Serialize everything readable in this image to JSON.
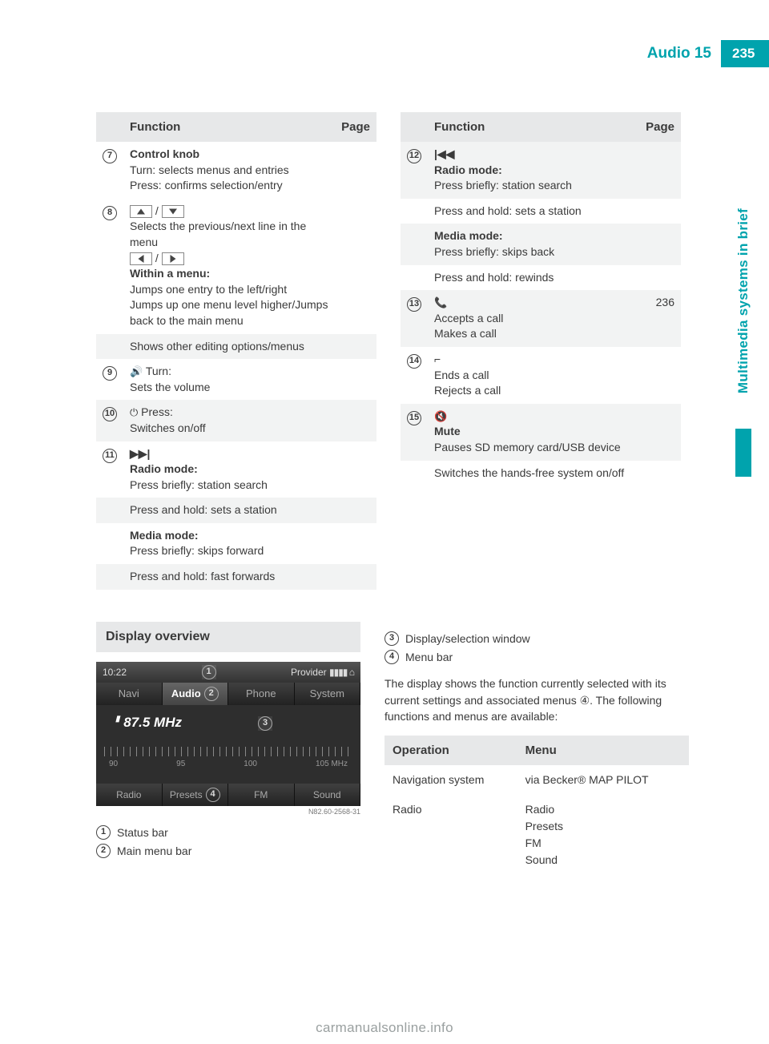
{
  "colors": {
    "accent": "#00a3ad",
    "header_bg": "#e7e8e9",
    "stripe_bg": "#f2f3f3",
    "text": "#3a3a3a",
    "footer": "#9aa0a0"
  },
  "header": {
    "title": "Audio 15",
    "page_number": "235",
    "side_tab": "Multimedia systems in brief"
  },
  "table_left": {
    "columns": {
      "func": "Function",
      "page": "Page"
    },
    "rows": [
      {
        "num": "7",
        "icon": "knob",
        "lines": [
          {
            "bold": true,
            "text": "Control knob"
          },
          {
            "text": "Turn: selects menus and entries"
          },
          {
            "text": "Press: confirms selection/entry"
          }
        ],
        "page": ""
      },
      {
        "num": "8",
        "lines": [
          {
            "arrows": "ud"
          },
          {
            "text": "Selects the previous/next line in the menu"
          },
          {
            "arrows": "lr"
          },
          {
            "bold": true,
            "text": "Within a menu:"
          },
          {
            "text": "Jumps one entry to the left/right"
          },
          {
            "text": "Jumps up one menu level higher/Jumps back to the main menu"
          }
        ],
        "page": ""
      },
      {
        "stripe": true,
        "lines": [
          {
            "text": "Shows other editing options/menus"
          }
        ]
      },
      {
        "num": "9",
        "lines": [
          {
            "icon": "vol",
            "text": " Turn:"
          },
          {
            "text": "Sets the volume"
          }
        ]
      },
      {
        "num": "10",
        "stripe": true,
        "lines": [
          {
            "icon": "pwr",
            "text": " Press:"
          },
          {
            "text": "Switches on/off"
          }
        ]
      },
      {
        "num": "11",
        "lines": [
          {
            "symbol": "▶▶|"
          },
          {
            "bold": true,
            "text": "Radio mode:"
          },
          {
            "text": "Press briefly: station search"
          }
        ]
      },
      {
        "stripe": true,
        "lines": [
          {
            "text": "Press and hold: sets a station"
          }
        ]
      },
      {
        "lines": [
          {
            "bold": true,
            "text": "Media mode:"
          },
          {
            "text": "Press briefly: skips forward"
          }
        ]
      },
      {
        "stripe": true,
        "lines": [
          {
            "text": "Press and hold: fast forwards"
          }
        ]
      }
    ]
  },
  "table_right": {
    "columns": {
      "func": "Function",
      "page": "Page"
    },
    "rows": [
      {
        "num": "12",
        "lines": [
          {
            "symbol": "|◀◀"
          },
          {
            "bold": true,
            "text": "Radio mode:"
          },
          {
            "text": "Press briefly: station search"
          }
        ],
        "stripe": true
      },
      {
        "lines": [
          {
            "text": "Press and hold: sets a station"
          }
        ]
      },
      {
        "stripe": true,
        "lines": [
          {
            "bold": true,
            "text": "Media mode:"
          },
          {
            "text": "Press briefly: skips back"
          }
        ]
      },
      {
        "lines": [
          {
            "text": "Press and hold: rewinds"
          }
        ]
      },
      {
        "num": "13",
        "stripe": true,
        "lines": [
          {
            "icon": "call"
          },
          {
            "text": "Accepts a call"
          },
          {
            "text": "Makes a call"
          }
        ],
        "page": "236"
      },
      {
        "num": "14",
        "lines": [
          {
            "icon": "end"
          },
          {
            "text": "Ends a call"
          },
          {
            "text": "Rejects a call"
          }
        ]
      },
      {
        "num": "15",
        "stripe": true,
        "lines": [
          {
            "icon": "mute"
          },
          {
            "bold": true,
            "text": "Mute"
          },
          {
            "text": "Pauses SD memory card/USB device"
          }
        ]
      },
      {
        "lines": [
          {
            "text": "Switches the hands-free system on/off"
          }
        ]
      }
    ]
  },
  "display_overview": {
    "heading": "Display overview",
    "screenshot": {
      "time": "10:22",
      "provider_label": "Provider",
      "signal_bars": 4,
      "tabs": [
        "Navi",
        "Audio",
        "Phone",
        "System"
      ],
      "active_tab": 1,
      "frequency": "87.5 MHz",
      "scale_labels": [
        "90",
        "95",
        "100",
        "105 MHz"
      ],
      "bottom_tabs": [
        "Radio",
        "Presets",
        "FM",
        "Sound"
      ],
      "markers": {
        "1": "top-status",
        "2": "main-tabs",
        "3": "body",
        "4": "bottom-bar"
      },
      "image_ref": "N82.60-2568-31"
    },
    "legend": [
      {
        "num": "1",
        "text": "Status bar"
      },
      {
        "num": "2",
        "text": "Main menu bar"
      }
    ]
  },
  "right_section": {
    "legend": [
      {
        "num": "3",
        "text": "Display/selection window"
      },
      {
        "num": "4",
        "text": "Menu bar"
      }
    ],
    "paragraph": "The display shows the function currently selected with its current settings and associated menus ④. The following functions and menus are available:",
    "op_table": {
      "columns": {
        "op": "Operation",
        "menu": "Menu"
      },
      "rows": [
        {
          "op": "Navigation system",
          "menu": "via Becker® MAP PILOT"
        },
        {
          "op": "Radio",
          "menu": "Radio\nPresets\nFM\nSound"
        }
      ]
    }
  },
  "footer": {
    "url": "carmanualsonline.info"
  }
}
